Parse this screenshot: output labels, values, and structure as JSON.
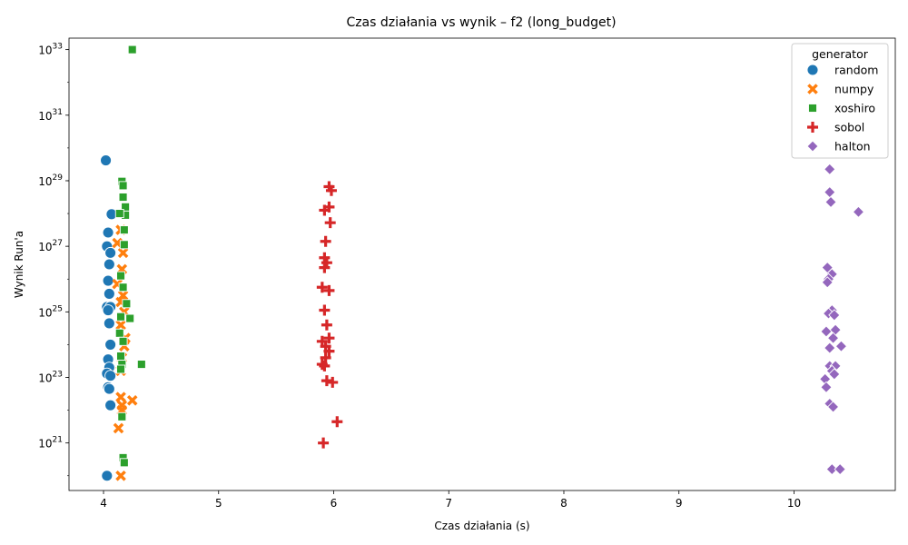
{
  "chart_data": {
    "type": "scatter",
    "title": "Czas działania vs wynik – f2 (long_budget)",
    "xlabel": "Czas działania (s)",
    "ylabel": "Wynik Run'a",
    "xlim": [
      3.7,
      10.88
    ],
    "ylog": true,
    "ylim_exp": [
      19.55,
      33.35
    ],
    "x_ticks": [
      4,
      5,
      6,
      7,
      8,
      9,
      10
    ],
    "y_tick_exps": [
      21,
      23,
      25,
      27,
      29,
      31,
      33
    ],
    "legend": {
      "title": "generator",
      "position": "top-right",
      "entries": [
        {
          "name": "random",
          "color": "#1f77b4",
          "marker": "circle"
        },
        {
          "name": "numpy",
          "color": "#ff7f0e",
          "marker": "x"
        },
        {
          "name": "xoshiro",
          "color": "#2ca02c",
          "marker": "square"
        },
        {
          "name": "sobol",
          "color": "#d62728",
          "marker": "plus"
        },
        {
          "name": "halton",
          "color": "#9467bd",
          "marker": "diamond"
        }
      ]
    },
    "series": [
      {
        "name": "random",
        "points": [
          [
            4.02,
            29.62
          ],
          [
            4.07,
            27.98
          ],
          [
            4.04,
            27.42
          ],
          [
            4.03,
            27.0
          ],
          [
            4.06,
            26.8
          ],
          [
            4.05,
            26.45
          ],
          [
            4.04,
            25.95
          ],
          [
            4.05,
            25.55
          ],
          [
            4.03,
            25.15
          ],
          [
            4.06,
            25.15
          ],
          [
            4.04,
            25.05
          ],
          [
            4.05,
            24.65
          ],
          [
            4.06,
            24.0
          ],
          [
            4.04,
            23.55
          ],
          [
            4.05,
            23.3
          ],
          [
            4.03,
            23.12
          ],
          [
            4.06,
            23.05
          ],
          [
            4.04,
            22.7
          ],
          [
            4.05,
            22.65
          ],
          [
            4.06,
            22.15
          ],
          [
            4.03,
            20.0
          ]
        ]
      },
      {
        "name": "numpy",
        "points": [
          [
            4.15,
            27.5
          ],
          [
            4.12,
            27.1
          ],
          [
            4.17,
            26.8
          ],
          [
            4.16,
            26.3
          ],
          [
            4.12,
            25.85
          ],
          [
            4.17,
            25.5
          ],
          [
            4.15,
            25.3
          ],
          [
            4.18,
            25.0
          ],
          [
            4.15,
            24.6
          ],
          [
            4.19,
            24.2
          ],
          [
            4.18,
            23.95
          ],
          [
            4.16,
            23.6
          ],
          [
            4.15,
            23.2
          ],
          [
            4.15,
            22.4
          ],
          [
            4.25,
            22.3
          ],
          [
            4.16,
            22.15
          ],
          [
            4.16,
            22.0
          ],
          [
            4.13,
            21.45
          ],
          [
            4.15,
            20.0
          ]
        ]
      },
      {
        "name": "xoshiro",
        "points": [
          [
            4.25,
            33.0
          ],
          [
            4.16,
            28.98
          ],
          [
            4.17,
            28.85
          ],
          [
            4.17,
            28.5
          ],
          [
            4.19,
            28.2
          ],
          [
            4.19,
            27.95
          ],
          [
            4.14,
            28.0
          ],
          [
            4.18,
            27.5
          ],
          [
            4.18,
            27.05
          ],
          [
            4.15,
            26.1
          ],
          [
            4.17,
            25.75
          ],
          [
            4.2,
            25.25
          ],
          [
            4.23,
            24.8
          ],
          [
            4.15,
            24.85
          ],
          [
            4.14,
            24.35
          ],
          [
            4.17,
            24.1
          ],
          [
            4.15,
            23.65
          ],
          [
            4.16,
            23.4
          ],
          [
            4.33,
            23.4
          ],
          [
            4.15,
            23.25
          ],
          [
            4.16,
            21.8
          ],
          [
            4.17,
            20.55
          ],
          [
            4.18,
            20.4
          ]
        ]
      },
      {
        "name": "sobol",
        "points": [
          [
            5.96,
            28.82
          ],
          [
            5.98,
            28.7
          ],
          [
            5.96,
            28.2
          ],
          [
            5.92,
            28.1
          ],
          [
            5.97,
            27.72
          ],
          [
            5.93,
            27.15
          ],
          [
            5.92,
            26.65
          ],
          [
            5.94,
            26.5
          ],
          [
            5.92,
            26.35
          ],
          [
            5.9,
            25.75
          ],
          [
            5.96,
            25.65
          ],
          [
            5.92,
            25.05
          ],
          [
            5.94,
            24.6
          ],
          [
            5.96,
            24.2
          ],
          [
            5.9,
            24.1
          ],
          [
            5.93,
            23.95
          ],
          [
            5.96,
            23.8
          ],
          [
            5.93,
            23.6
          ],
          [
            5.9,
            23.4
          ],
          [
            5.92,
            23.35
          ],
          [
            5.94,
            22.9
          ],
          [
            5.99,
            22.85
          ],
          [
            6.03,
            21.65
          ],
          [
            5.91,
            21.0
          ]
        ]
      },
      {
        "name": "halton",
        "points": [
          [
            10.31,
            29.35
          ],
          [
            10.31,
            28.65
          ],
          [
            10.32,
            28.35
          ],
          [
            10.56,
            28.05
          ],
          [
            10.29,
            26.35
          ],
          [
            10.33,
            26.15
          ],
          [
            10.3,
            26.0
          ],
          [
            10.29,
            25.9
          ],
          [
            10.33,
            25.05
          ],
          [
            10.3,
            24.95
          ],
          [
            10.35,
            24.9
          ],
          [
            10.36,
            24.45
          ],
          [
            10.28,
            24.4
          ],
          [
            10.34,
            24.2
          ],
          [
            10.41,
            23.95
          ],
          [
            10.31,
            23.9
          ],
          [
            10.31,
            23.35
          ],
          [
            10.36,
            23.35
          ],
          [
            10.33,
            23.2
          ],
          [
            10.35,
            23.1
          ],
          [
            10.27,
            22.95
          ],
          [
            10.28,
            22.7
          ],
          [
            10.31,
            22.2
          ],
          [
            10.34,
            22.1
          ],
          [
            10.33,
            20.2
          ],
          [
            10.4,
            20.2
          ]
        ]
      }
    ]
  }
}
